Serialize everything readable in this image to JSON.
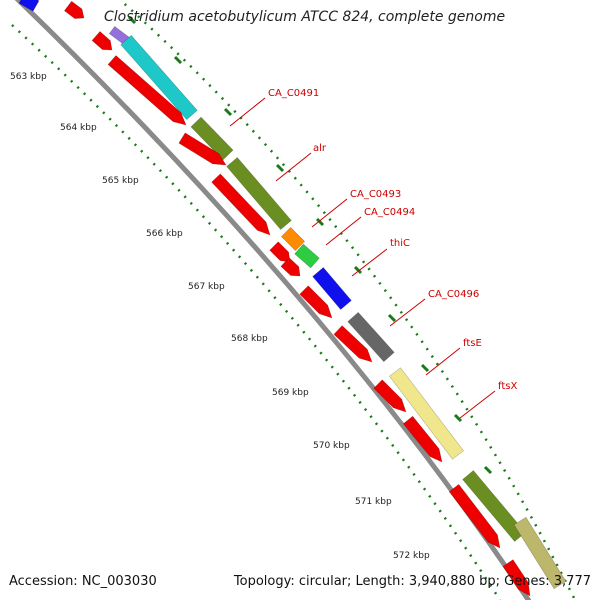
{
  "title": "Clostridium acetobutylicum ATCC 824, complete genome",
  "footer": {
    "accession": "Accession: NC_003030",
    "summary": "Topology: circular; Length: 3,940,880 bp; Genes: 3,777"
  },
  "ticks": [
    "563 kbp",
    "564 kbp",
    "565 kbp",
    "566 kbp",
    "567 kbp",
    "568 kbp",
    "569 kbp",
    "570 kbp",
    "571 kbp",
    "572 kbp"
  ],
  "gene_labels": [
    "CA_C0491",
    "alr",
    "CA_C0493",
    "CA_C0494",
    "thiC",
    "CA_C0496",
    "ftsE",
    "ftsX"
  ],
  "colors": {
    "backbone": "#8a8a8a",
    "red": "#ee0000",
    "cyan": "#1ec8c8",
    "olive": "#6b8e23",
    "orange": "#ff8c00",
    "green": "#2ecc40",
    "blue": "#1010ee",
    "gray": "#666666",
    "yellow": "#f0e68c",
    "khaki": "#bdb76b",
    "lavender": "#9370db",
    "tick": "#1a7a1a",
    "label": "#cc0000"
  }
}
